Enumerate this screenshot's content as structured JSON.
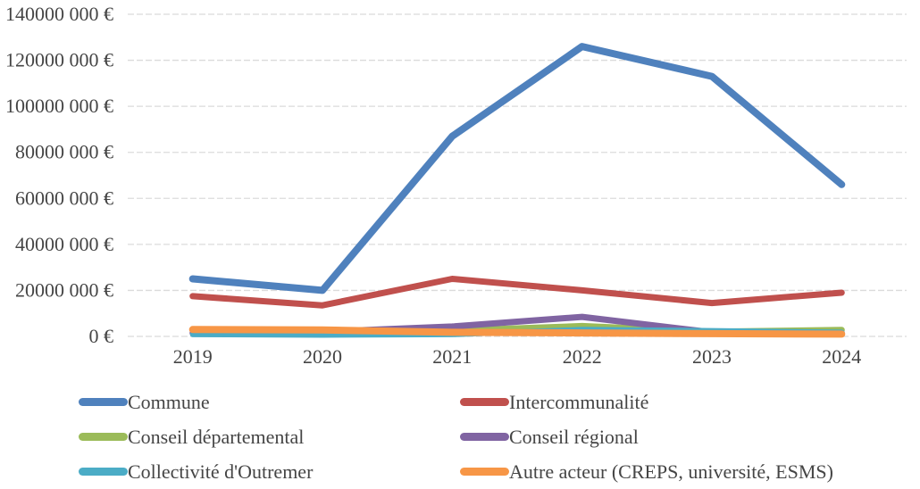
{
  "chart_data": {
    "type": "line",
    "title": "",
    "xlabel": "",
    "ylabel": "",
    "categories": [
      "2019",
      "2020",
      "2021",
      "2022",
      "2023",
      "2024"
    ],
    "series": [
      {
        "name": "Commune",
        "color": "#4F81BD",
        "values": [
          25000000,
          20000000,
          87000000,
          126000000,
          113000000,
          66000000
        ]
      },
      {
        "name": "Intercommunalité",
        "color": "#C0504D",
        "values": [
          17500000,
          13500000,
          25000000,
          20000000,
          14500000,
          19000000
        ]
      },
      {
        "name": "Conseil départemental",
        "color": "#9BBB59",
        "values": [
          2800000,
          2600000,
          2500000,
          4500000,
          2000000,
          2800000
        ]
      },
      {
        "name": "Conseil régional",
        "color": "#8064A2",
        "values": [
          1500000,
          2000000,
          4300000,
          8500000,
          1800000,
          1500000
        ]
      },
      {
        "name": "Collectivité d'Outremer",
        "color": "#4BACC6",
        "values": [
          800000,
          600000,
          800000,
          3000000,
          2500000,
          1800000
        ]
      },
      {
        "name": "Autre acteur (CREPS, université, ESMS)",
        "color": "#F79646",
        "values": [
          3000000,
          2800000,
          1800000,
          1500000,
          1200000,
          1000000
        ]
      }
    ],
    "y_axis": {
      "min": 0,
      "max": 140000000,
      "tick_interval": 20000000,
      "ticks": [
        {
          "value": 140000000,
          "label": "140000 000 €"
        },
        {
          "value": 120000000,
          "label": "120000 000 €"
        },
        {
          "value": 100000000,
          "label": "100000 000 €"
        },
        {
          "value": 80000000,
          "label": "80000 000 €"
        },
        {
          "value": 60000000,
          "label": "60000 000 €"
        },
        {
          "value": 40000000,
          "label": "40000 000 €"
        },
        {
          "value": 20000000,
          "label": "20000 000 €"
        },
        {
          "value": 0,
          "label": "0 €"
        }
      ]
    },
    "grid": true,
    "gridline_color": "#DBDBDB",
    "text_color": "#454545",
    "legend_position": "bottom"
  }
}
